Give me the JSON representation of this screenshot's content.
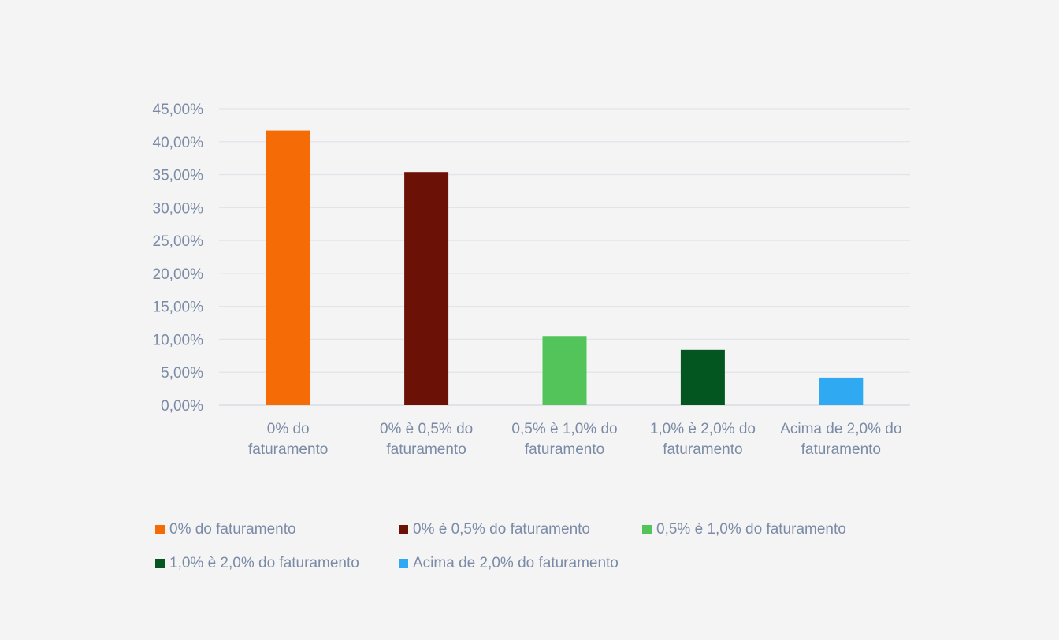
{
  "chart_data": {
    "type": "bar",
    "categories": [
      "0% do faturamento",
      "0% è 0,5% do faturamento",
      "0,5% è 1,0% do faturamento",
      "1,0% è 2,0% do faturamento",
      "Acima de 2,0% do faturamento"
    ],
    "category_lines": [
      [
        "0% do",
        "faturamento"
      ],
      [
        "0% è 0,5% do",
        "faturamento"
      ],
      [
        "0,5% è 1,0% do",
        "faturamento"
      ],
      [
        "1,0% è 2,0% do",
        "faturamento"
      ],
      [
        "Acima de 2,0% do",
        "faturamento"
      ]
    ],
    "values": [
      41.7,
      35.4,
      10.5,
      8.4,
      4.2
    ],
    "colors": [
      "#f56c06",
      "#6b1105",
      "#52c45a",
      "#03561f",
      "#2faaf2"
    ],
    "ylim": [
      0,
      45
    ],
    "ytick_labels": [
      "0,00%",
      "5,00%",
      "10,00%",
      "15,00%",
      "20,00%",
      "25,00%",
      "30,00%",
      "35,00%",
      "40,00%",
      "45,00%"
    ],
    "grid": true,
    "legend_position": "bottom",
    "legend": [
      "0% do faturamento",
      "0% è 0,5% do faturamento",
      "0,5% è 1,0% do faturamento",
      "1,0% è 2,0% do faturamento",
      "Acima de 2,0% do faturamento"
    ],
    "title": "",
    "xlabel": "",
    "ylabel": ""
  }
}
